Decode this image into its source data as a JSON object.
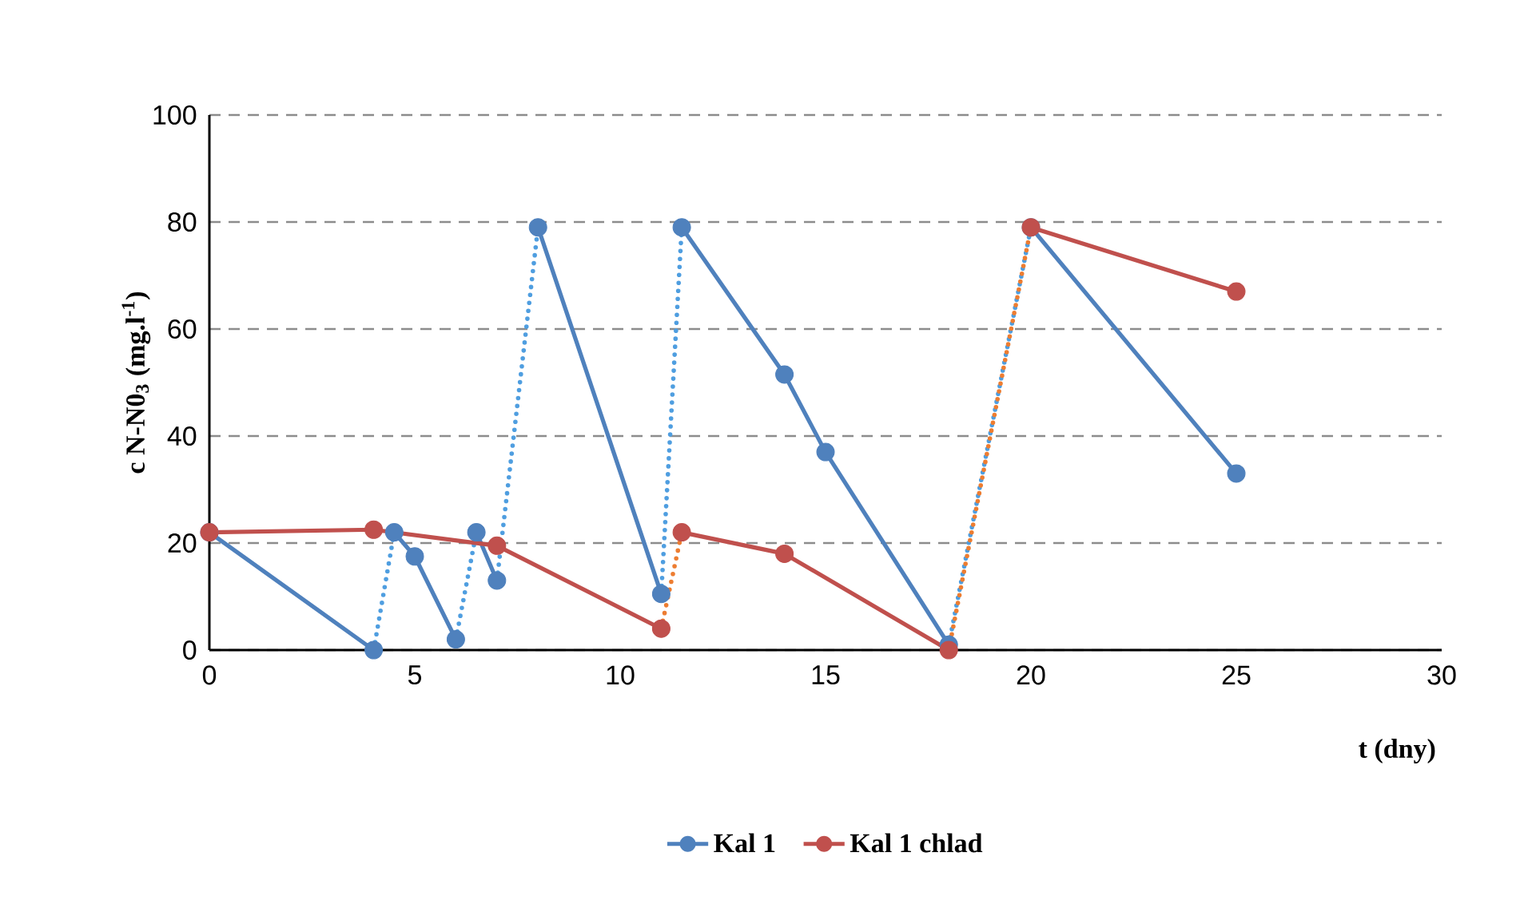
{
  "chart_data": {
    "type": "line",
    "xlabel": "t (dny)",
    "ylabel": "c N-N0$_{3}$ (mg.l$^{-1}$)",
    "xlim": [
      0,
      30
    ],
    "xticks": [
      0,
      5,
      10,
      15,
      20,
      25,
      30
    ],
    "ylim": [
      0,
      100
    ],
    "yticks": [
      0,
      20,
      40,
      60,
      80,
      100
    ],
    "grid": "y",
    "legend": "bottom",
    "marker": "circle",
    "series": [
      {
        "name": "Kal 1",
        "color": "#4f81bd",
        "x": [
          0,
          4,
          null,
          4.5,
          5,
          6,
          null,
          6.5,
          7,
          null,
          8,
          11,
          null,
          11.5,
          14,
          15,
          18,
          null,
          20,
          25
        ],
        "values": [
          22,
          0,
          null,
          22,
          17.5,
          2,
          null,
          22,
          13,
          null,
          79,
          10.5,
          null,
          79,
          51.5,
          37,
          1,
          null,
          79,
          33
        ]
      },
      {
        "name": "Kal 1 chlad",
        "color": "#c0504d",
        "x": [
          0,
          4,
          7,
          11,
          null,
          11.5,
          14,
          18,
          null,
          20,
          25
        ],
        "values": [
          22,
          22.5,
          19.5,
          4,
          null,
          22,
          18,
          0,
          null,
          79,
          67
        ]
      },
      {
        "color": "#4f9ee0",
        "marker": "none",
        "line_style": "dotted",
        "x": [
          4,
          4.5,
          null,
          6,
          6.5,
          null,
          7,
          8,
          null,
          11,
          11.5,
          null,
          18,
          20
        ],
        "values": [
          0,
          22,
          null,
          2,
          22,
          null,
          13,
          79,
          null,
          10.5,
          79,
          null,
          1,
          79
        ]
      },
      {
        "color": "#ed7d31",
        "marker": "none",
        "line_style": "dotted",
        "x": [
          11,
          11.5,
          null,
          18,
          20
        ],
        "values": [
          4,
          22,
          null,
          0,
          79
        ]
      }
    ]
  }
}
